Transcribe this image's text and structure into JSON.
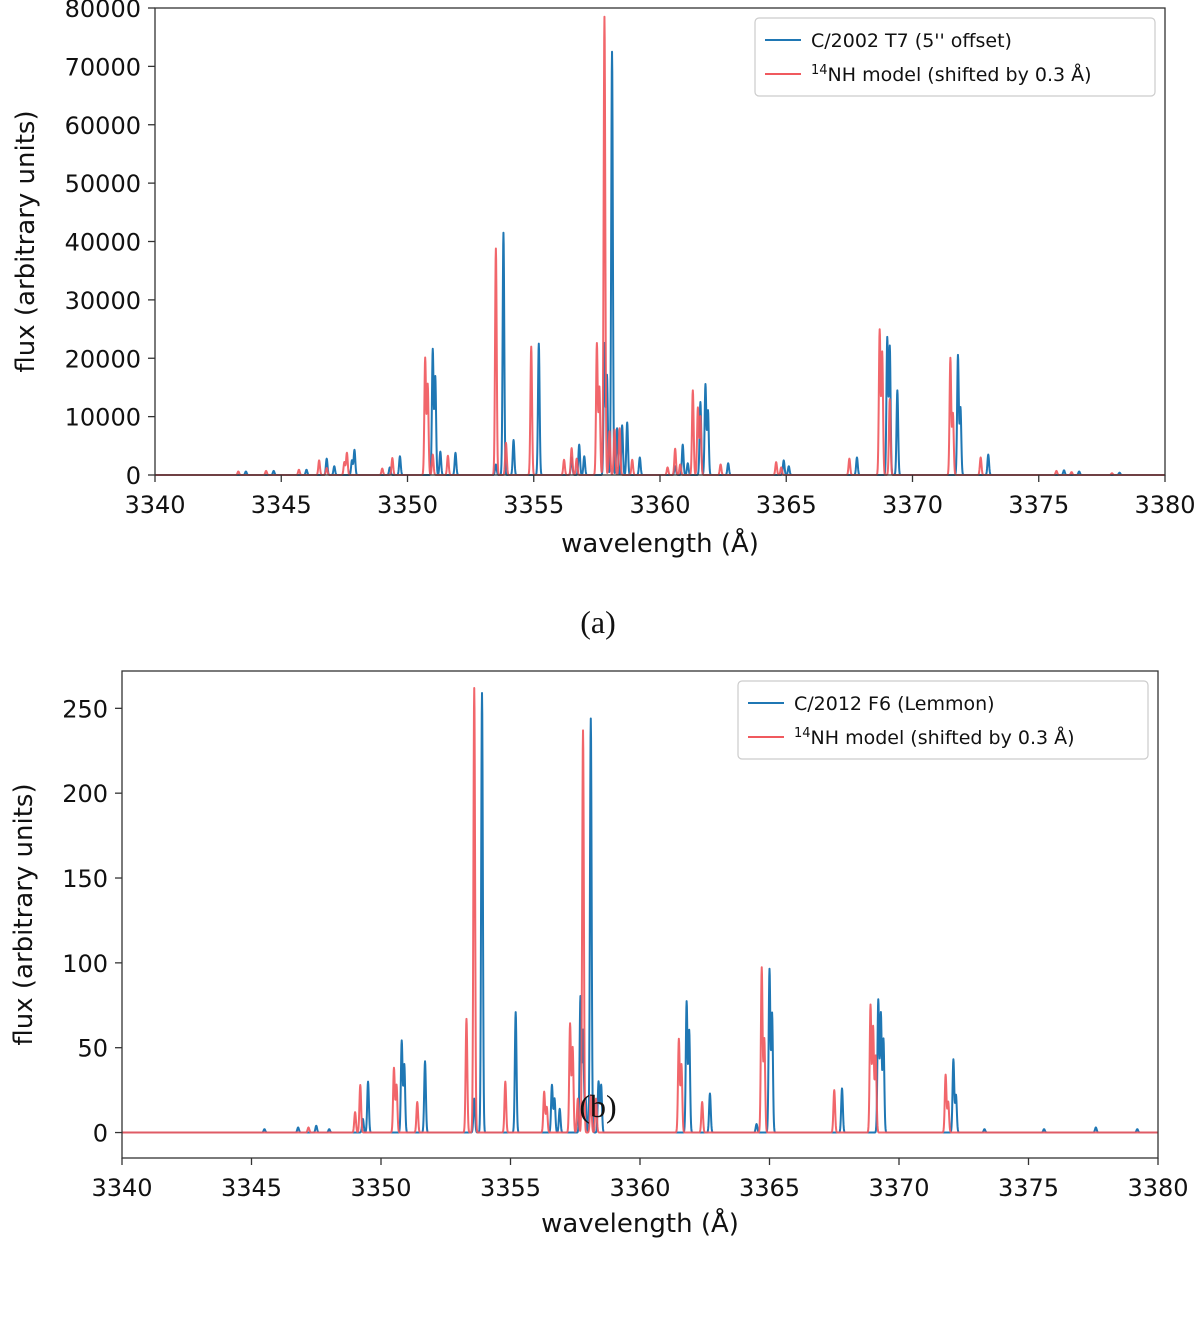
{
  "chart_data": [
    {
      "panel": "a",
      "type": "line",
      "xlabel": "wavelength (Å)",
      "ylabel": "flux (arbitrary units)",
      "xlim": [
        3340,
        3380
      ],
      "ylim": [
        0,
        80000
      ],
      "xticks": [
        3340,
        3345,
        3350,
        3355,
        3360,
        3365,
        3370,
        3375,
        3380
      ],
      "yticks": [
        0,
        10000,
        20000,
        30000,
        40000,
        50000,
        60000,
        70000,
        80000
      ],
      "grid": false,
      "legend_position": "top-right",
      "caption": "(a)",
      "series": [
        {
          "name": "C/2002 T7 (5'' offset)",
          "color": "#1f77b4",
          "peaks": [
            [
              3343.6,
              600
            ],
            [
              3344.7,
              700
            ],
            [
              3346.0,
              900
            ],
            [
              3346.8,
              2800
            ],
            [
              3347.1,
              1500
            ],
            [
              3347.8,
              2500
            ],
            [
              3347.9,
              4300
            ],
            [
              3349.3,
              1300
            ],
            [
              3349.7,
              3200
            ],
            [
              3351.0,
              21500
            ],
            [
              3351.1,
              16800
            ],
            [
              3351.3,
              4000
            ],
            [
              3351.9,
              3800
            ],
            [
              3353.5,
              1800
            ],
            [
              3353.8,
              41500
            ],
            [
              3354.2,
              6000
            ],
            [
              3355.2,
              22500
            ],
            [
              3356.5,
              3000
            ],
            [
              3356.8,
              5200
            ],
            [
              3357.0,
              3200
            ],
            [
              3357.8,
              22500
            ],
            [
              3357.9,
              17000
            ],
            [
              3358.1,
              72500
            ],
            [
              3358.3,
              8000
            ],
            [
              3358.5,
              8500
            ],
            [
              3358.7,
              9000
            ],
            [
              3359.2,
              3000
            ],
            [
              3360.6,
              1500
            ],
            [
              3360.9,
              5200
            ],
            [
              3361.1,
              2000
            ],
            [
              3361.6,
              12500
            ],
            [
              3361.8,
              15500
            ],
            [
              3361.9,
              11000
            ],
            [
              3362.7,
              2000
            ],
            [
              3364.9,
              2500
            ],
            [
              3365.1,
              1500
            ],
            [
              3367.8,
              3000
            ],
            [
              3369.0,
              23500
            ],
            [
              3369.1,
              22000
            ],
            [
              3369.4,
              14500
            ],
            [
              3371.8,
              20500
            ],
            [
              3371.9,
              11500
            ],
            [
              3373.0,
              3500
            ],
            [
              3376.0,
              800
            ],
            [
              3376.6,
              600
            ],
            [
              3378.2,
              400
            ]
          ]
        },
        {
          "name": "14NH model (shifted by 0.3 Å)",
          "color": "#f0595e",
          "peaks": [
            [
              3343.3,
              600
            ],
            [
              3344.4,
              700
            ],
            [
              3345.7,
              900
            ],
            [
              3346.5,
              2500
            ],
            [
              3346.8,
              1200
            ],
            [
              3347.5,
              2200
            ],
            [
              3347.6,
              3800
            ],
            [
              3349.0,
              1100
            ],
            [
              3349.4,
              2900
            ],
            [
              3350.7,
              20000
            ],
            [
              3350.8,
              15500
            ],
            [
              3351.0,
              3500
            ],
            [
              3351.6,
              3300
            ],
            [
              3353.5,
              38800
            ],
            [
              3353.9,
              5500
            ],
            [
              3354.9,
              22000
            ],
            [
              3356.2,
              2600
            ],
            [
              3356.5,
              4600
            ],
            [
              3356.7,
              2800
            ],
            [
              3357.5,
              22500
            ],
            [
              3357.6,
              15000
            ],
            [
              3357.8,
              78500
            ],
            [
              3358.0,
              7500
            ],
            [
              3358.2,
              7800
            ],
            [
              3358.4,
              8000
            ],
            [
              3358.9,
              2600
            ],
            [
              3360.3,
              1300
            ],
            [
              3360.6,
              4500
            ],
            [
              3360.8,
              1800
            ],
            [
              3361.3,
              14500
            ],
            [
              3361.5,
              11500
            ],
            [
              3361.6,
              10000
            ],
            [
              3362.4,
              1800
            ],
            [
              3364.6,
              2200
            ],
            [
              3364.8,
              1300
            ],
            [
              3367.5,
              2800
            ],
            [
              3368.7,
              24800
            ],
            [
              3368.8,
              21000
            ],
            [
              3369.1,
              13000
            ],
            [
              3371.5,
              20000
            ],
            [
              3371.6,
              10500
            ],
            [
              3372.7,
              3000
            ],
            [
              3375.7,
              700
            ],
            [
              3376.3,
              500
            ],
            [
              3377.9,
              300
            ]
          ]
        }
      ]
    },
    {
      "panel": "b",
      "type": "line",
      "xlabel": "wavelength (Å)",
      "ylabel": "flux (arbitrary units)",
      "xlim": [
        3340,
        3380
      ],
      "ylim": [
        -15,
        272
      ],
      "xticks": [
        3340,
        3345,
        3350,
        3355,
        3360,
        3365,
        3370,
        3375,
        3380
      ],
      "yticks": [
        0,
        50,
        100,
        150,
        200,
        250
      ],
      "grid": false,
      "legend_position": "top-right",
      "caption": "(b)",
      "series": [
        {
          "name": "C/2012 F6 (Lemmon)",
          "color": "#1f77b4",
          "peaks": [
            [
              3345.5,
              2
            ],
            [
              3346.8,
              3
            ],
            [
              3347.5,
              4
            ],
            [
              3348.0,
              2
            ],
            [
              3349.3,
              8
            ],
            [
              3349.5,
              30
            ],
            [
              3350.8,
              54
            ],
            [
              3350.9,
              40
            ],
            [
              3351.7,
              42
            ],
            [
              3353.6,
              20
            ],
            [
              3353.9,
              259
            ],
            [
              3355.2,
              71
            ],
            [
              3356.6,
              28
            ],
            [
              3356.7,
              20
            ],
            [
              3356.9,
              14
            ],
            [
              3357.7,
              80
            ],
            [
              3357.8,
              60
            ],
            [
              3357.9,
              20
            ],
            [
              3358.1,
              244
            ],
            [
              3358.4,
              30
            ],
            [
              3358.5,
              28
            ],
            [
              3361.8,
              77
            ],
            [
              3361.9,
              60
            ],
            [
              3362.7,
              23
            ],
            [
              3364.5,
              5
            ],
            [
              3365.0,
              96
            ],
            [
              3365.1,
              70
            ],
            [
              3367.8,
              26
            ],
            [
              3369.2,
              78
            ],
            [
              3369.3,
              70
            ],
            [
              3369.4,
              55
            ],
            [
              3372.1,
              43
            ],
            [
              3372.2,
              22
            ],
            [
              3373.3,
              2
            ],
            [
              3375.6,
              2
            ],
            [
              3377.6,
              3
            ],
            [
              3379.2,
              2
            ]
          ]
        },
        {
          "name": "14NH model (shifted by 0.3 Å)",
          "color": "#f0595e",
          "peaks": [
            [
              3347.2,
              3
            ],
            [
              3349.0,
              12
            ],
            [
              3349.2,
              28
            ],
            [
              3350.5,
              38
            ],
            [
              3350.6,
              28
            ],
            [
              3351.4,
              18
            ],
            [
              3353.3,
              67
            ],
            [
              3353.6,
              262
            ],
            [
              3354.8,
              30
            ],
            [
              3356.3,
              24
            ],
            [
              3356.4,
              15
            ],
            [
              3357.3,
              64
            ],
            [
              3357.4,
              50
            ],
            [
              3357.6,
              20
            ],
            [
              3357.8,
              237
            ],
            [
              3358.1,
              22
            ],
            [
              3358.3,
              20
            ],
            [
              3361.5,
              55
            ],
            [
              3361.6,
              40
            ],
            [
              3362.4,
              18
            ],
            [
              3364.7,
              97
            ],
            [
              3364.8,
              55
            ],
            [
              3367.5,
              25
            ],
            [
              3368.9,
              75
            ],
            [
              3369.0,
              62
            ],
            [
              3369.1,
              45
            ],
            [
              3371.8,
              34
            ],
            [
              3371.9,
              18
            ]
          ]
        }
      ]
    }
  ]
}
